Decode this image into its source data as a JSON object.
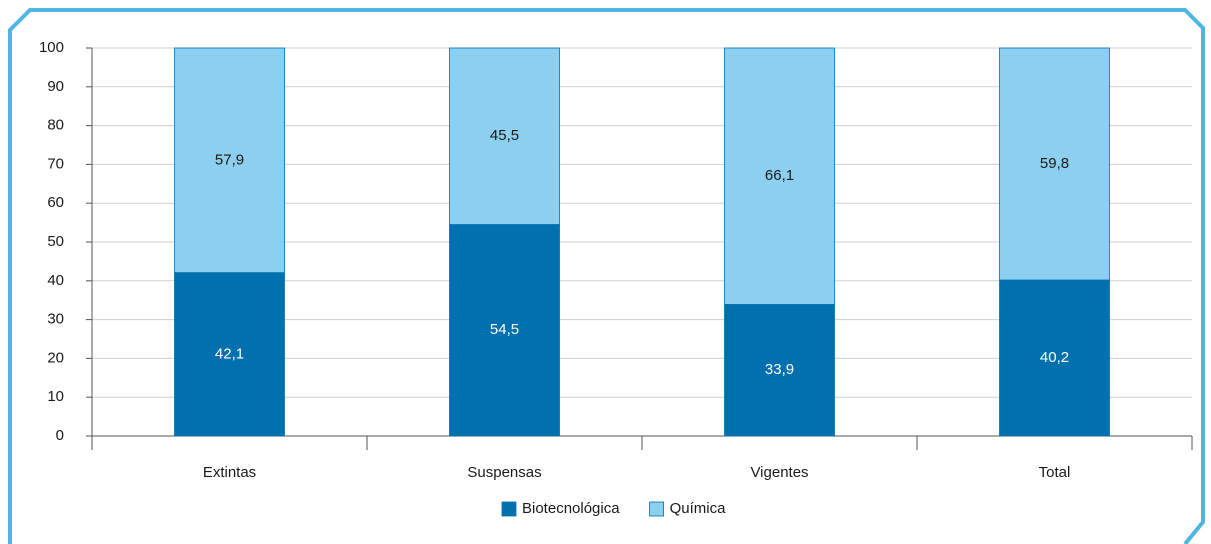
{
  "chart_data": {
    "type": "bar",
    "stacked": true,
    "categories": [
      "Extintas",
      "Suspensas",
      "Vigentes",
      "Total"
    ],
    "series": [
      {
        "name": "Biotecnológica",
        "color": "#0070ae",
        "values": [
          42.1,
          54.5,
          33.9,
          40.2
        ],
        "value_labels": [
          "42,1",
          "54,5",
          "33,9",
          "40,2"
        ]
      },
      {
        "name": "Química",
        "color": "#8ccfee",
        "values": [
          57.9,
          45.5,
          66.1,
          59.8
        ],
        "value_labels": [
          "57,9",
          "45,5",
          "66,1",
          "59,8"
        ]
      }
    ],
    "ylim": [
      0,
      100
    ],
    "yticks": [
      0,
      10,
      20,
      30,
      40,
      50,
      60,
      70,
      80,
      90,
      100
    ],
    "grid": true,
    "legend": "bottom"
  }
}
